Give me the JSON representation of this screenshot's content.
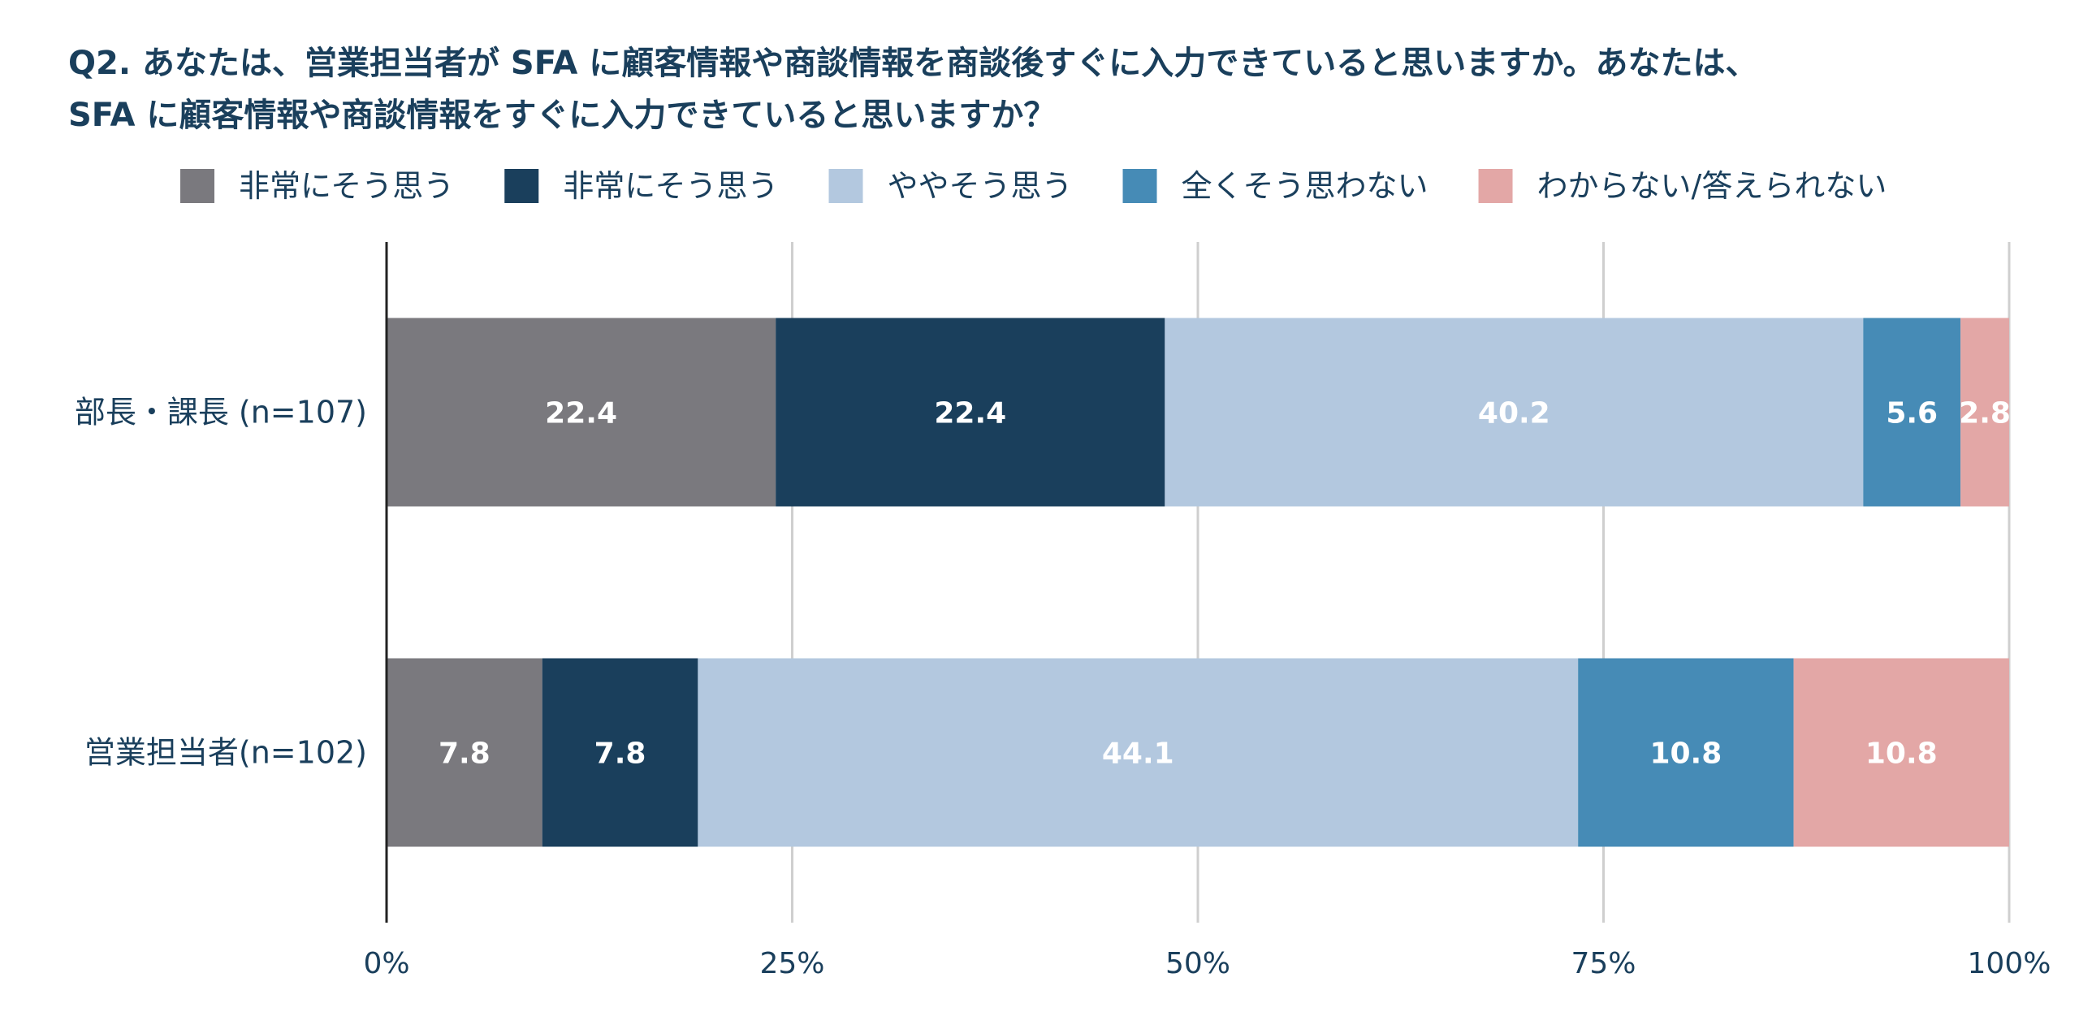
{
  "title_lines": [
    "Q2. あなたは、営業担当者が SFA に顧客情報や商談情報を商談後すぐに入力できていると思いますか。あなたは、",
    "SFA に顧客情報や商談情報をすぐに入力できていると思いますか？"
  ],
  "chart_data": {
    "type": "bar",
    "orientation": "horizontal",
    "stacked": true,
    "normalized": true,
    "title": "Q2. あなたは、営業担当者が SFA に顧客情報や商談情報を商談後すぐに入力できていると思いますか。あなたは、SFA に顧客情報や商談情報をすぐに入力できていると思いますか？",
    "categories": [
      "部長・課長 (n=107)",
      "営業担当者(n=102)"
    ],
    "series": [
      {
        "name": "非常にそう思う",
        "color": "#7a797e",
        "values": [
          22.4,
          7.8
        ]
      },
      {
        "name": "非常にそう思う",
        "color": "#1a3f5c",
        "values": [
          22.4,
          7.8
        ]
      },
      {
        "name": "ややそう思う",
        "color": "#b3c8df",
        "values": [
          40.2,
          44.1
        ]
      },
      {
        "name": "全くそう思わない",
        "color": "#468bb6",
        "values": [
          5.6,
          10.8
        ]
      },
      {
        "name": "わからない/答えられない",
        "color": "#e3a7a6",
        "values": [
          2.8,
          10.8
        ]
      }
    ],
    "xticks": [
      "0%",
      "25%",
      "50%",
      "75%",
      "100%"
    ],
    "xlim": [
      0,
      100
    ],
    "grid": true,
    "legend": "top"
  }
}
